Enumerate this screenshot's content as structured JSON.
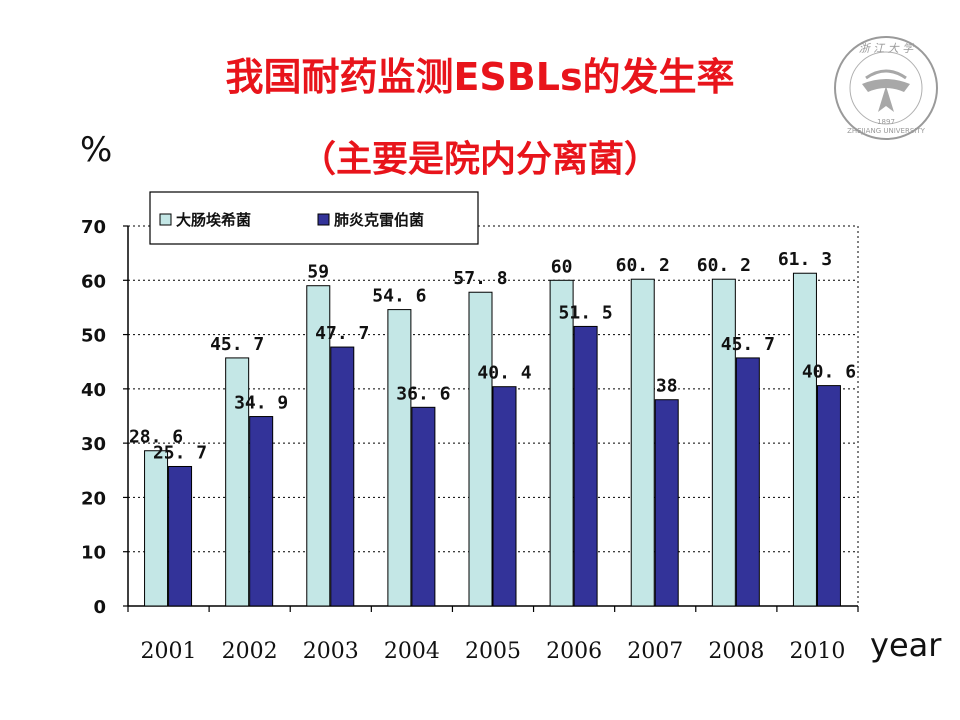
{
  "title_line1": "我国耐药监测ESBLs的发生率",
  "title_line2": "（主要是院内分离菌）",
  "y_unit": "%",
  "x_unit": "year",
  "logo": {
    "text": "浙江大学",
    "latin": "ZHEJIANG UNIVERSITY",
    "year": "1897"
  },
  "colors": {
    "title": "#e8141b",
    "series1": "#c4e7e6",
    "series2": "#333399",
    "axis": "#000000"
  },
  "chart_data": {
    "type": "bar",
    "categories": [
      "2001",
      "2002",
      "2003",
      "2004",
      "2005",
      "2006",
      "2007",
      "2008",
      "2010"
    ],
    "series": [
      {
        "name": "大肠埃希菌",
        "values": [
          28.6,
          45.7,
          59,
          54.6,
          57.8,
          60,
          60.2,
          60.2,
          61.3
        ],
        "labels": [
          "28. 6",
          "45. 7",
          "59",
          "54. 6",
          "57. 8",
          "60",
          "60. 2",
          "60. 2",
          "61. 3"
        ]
      },
      {
        "name": "肺炎克雷伯菌",
        "values": [
          25.7,
          34.9,
          47.7,
          36.6,
          40.4,
          51.5,
          38,
          45.7,
          40.6
        ],
        "labels": [
          "25. 7",
          "34. 9",
          "47. 7",
          "36. 6",
          "40. 4",
          "51. 5",
          "38",
          "45. 7",
          "40. 6"
        ]
      }
    ],
    "ylim": [
      0,
      70
    ],
    "yticks": [
      0,
      10,
      20,
      30,
      40,
      50,
      60,
      70
    ],
    "grid": "horizontal dotted",
    "legend": "top-left"
  }
}
